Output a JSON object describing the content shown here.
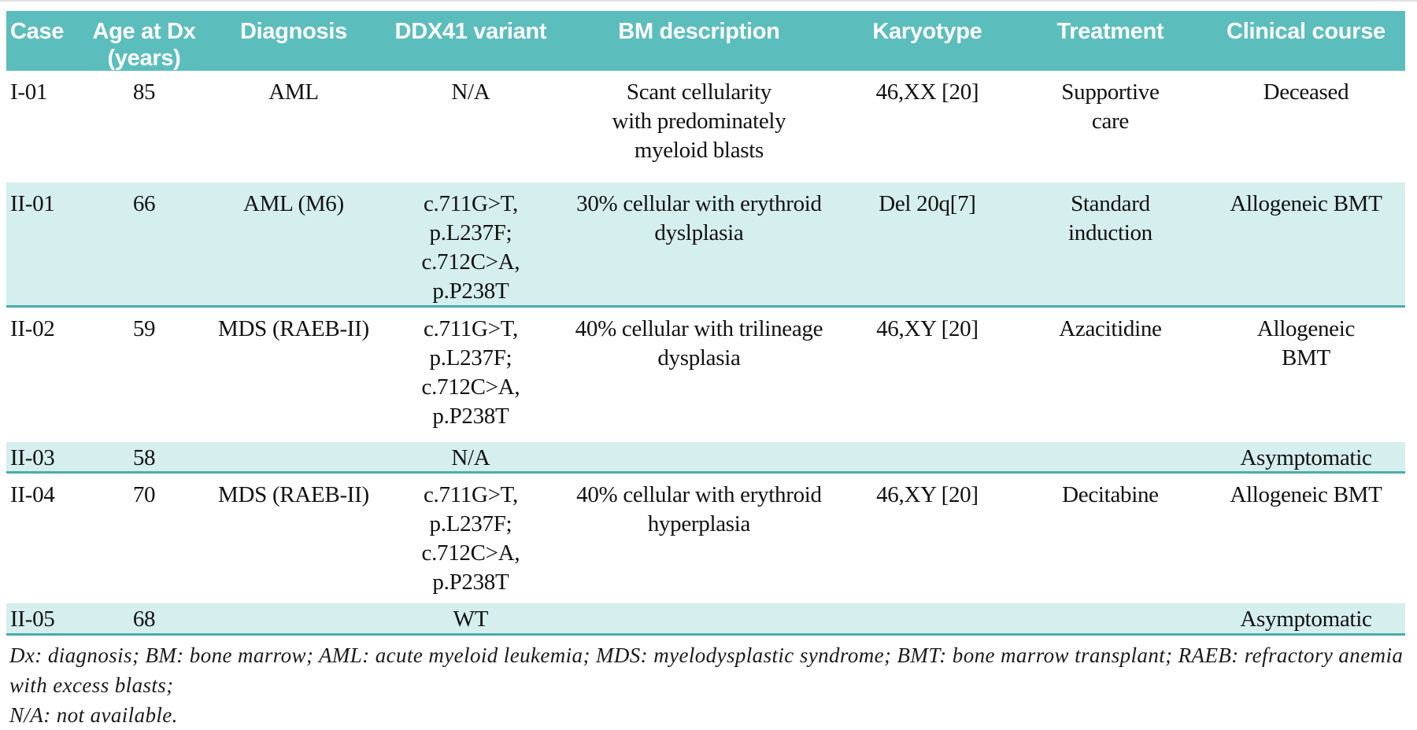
{
  "colors": {
    "header_bg": "#5cbdbd",
    "header_text": "#ffffff",
    "row_shade": "#d5eeee",
    "divider": "#4aabab",
    "text": "#111111"
  },
  "table": {
    "columns": [
      {
        "id": "case",
        "label": "Case"
      },
      {
        "id": "age",
        "label": "Age at Dx\n(years)"
      },
      {
        "id": "diagnosis",
        "label": "Diagnosis"
      },
      {
        "id": "variant",
        "label": "DDX41 variant"
      },
      {
        "id": "bm",
        "label": "BM description"
      },
      {
        "id": "karyotype",
        "label": "Karyotype"
      },
      {
        "id": "treatment",
        "label": "Treatment"
      },
      {
        "id": "course",
        "label": "Clinical course"
      }
    ],
    "rows": [
      {
        "case": "I-01",
        "age": "85",
        "diagnosis": "AML",
        "variant": "N/A",
        "bm": "Scant cellularity\nwith predominately\nmyeloid blasts",
        "karyotype": "46,XX [20]",
        "treatment": "Supportive\ncare",
        "course": "Deceased"
      },
      {
        "case": "II-01",
        "age": "66",
        "diagnosis": "AML (M6)",
        "variant": "c.711G>T,\np.L237F;\nc.712C>A,\np.P238T",
        "bm": "30% cellular with erythroid\ndyslplasia",
        "karyotype": "Del 20q[7]",
        "treatment": "Standard\ninduction",
        "course": "Allogeneic BMT"
      },
      {
        "case": "II-02",
        "age": "59",
        "diagnosis": "MDS (RAEB-II)",
        "variant": "c.711G>T,\np.L237F;\nc.712C>A,\np.P238T",
        "bm": "40% cellular with trilineage\ndysplasia",
        "karyotype": "46,XY [20]",
        "treatment": "Azacitidine",
        "course": "Allogeneic\nBMT"
      },
      {
        "case": "II-03",
        "age": "58",
        "diagnosis": "",
        "variant": "N/A",
        "bm": "",
        "karyotype": "",
        "treatment": "",
        "course": "Asymptomatic"
      },
      {
        "case": "II-04",
        "age": "70",
        "diagnosis": "MDS (RAEB-II)",
        "variant": "c.711G>T,\np.L237F;\nc.712C>A,\np.P238T",
        "bm": "40% cellular with erythroid\nhyperplasia",
        "karyotype": "46,XY [20]",
        "treatment": "Decitabine",
        "course": "Allogeneic BMT"
      },
      {
        "case": "II-05",
        "age": "68",
        "diagnosis": "",
        "variant": "WT",
        "bm": "",
        "karyotype": "",
        "treatment": "",
        "course": "Asymptomatic"
      }
    ],
    "footnote": "Dx: diagnosis; BM: bone marrow; AML: acute myeloid leukemia; MDS: myelodysplastic syndrome; BMT: bone marrow transplant; RAEB: refractory anemia with excess blasts;\nN/A: not available."
  }
}
